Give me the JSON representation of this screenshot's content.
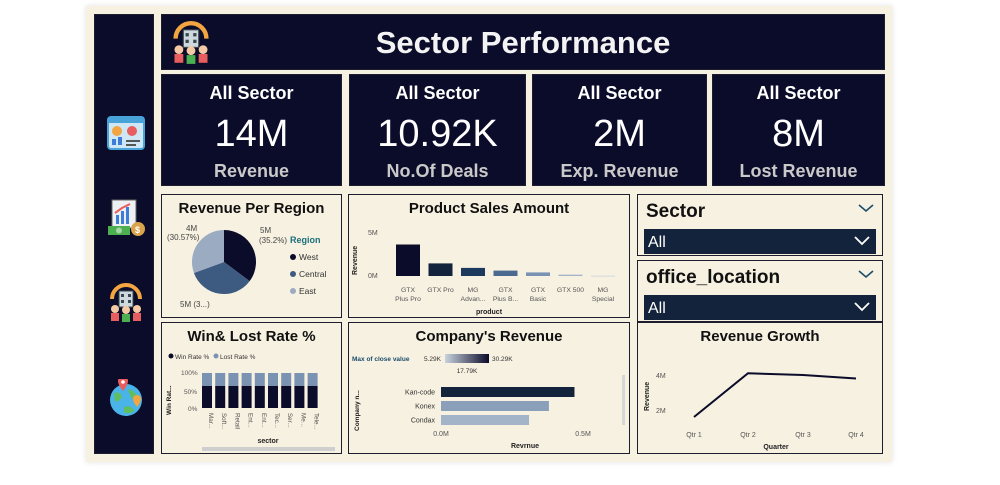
{
  "header": {
    "title": "Sector Performance",
    "logo_icon": "office-team-icon"
  },
  "sidebar": {
    "items": [
      {
        "icon": "dashboard-icon"
      },
      {
        "icon": "finance-growth-icon"
      },
      {
        "icon": "office-team-icon"
      },
      {
        "icon": "globe-location-icon"
      }
    ]
  },
  "kpis": [
    {
      "top": "All Sector",
      "value": "14M",
      "label": "Revenue"
    },
    {
      "top": "All Sector",
      "value": "10.92K",
      "label": "No.Of Deals"
    },
    {
      "top": "All Sector",
      "value": "2M",
      "label": "Exp. Revenue"
    },
    {
      "top": "All Sector",
      "value": "8M",
      "label": "Lost Revenue"
    }
  ],
  "pie": {
    "title": "Revenue Per Region",
    "legend_title": "Region",
    "slices": [
      {
        "name": "West",
        "value": 5,
        "percent": 35.2,
        "color": "#0b0b2a"
      },
      {
        "name": "Central",
        "value": 5,
        "percent": 34.23,
        "color": "#3d5a80"
      },
      {
        "name": "East",
        "value": 4,
        "percent": 30.57,
        "color": "#9aabc2"
      }
    ],
    "labels": {
      "west": "5M\n(35.2%)",
      "east": "4M\n(30.57%)",
      "central": "5M (3...)"
    },
    "label_west_1": "5M",
    "label_west_2": "(35.2%)",
    "label_east_1": "4M",
    "label_east_2": "(30.57%)",
    "label_central": "5M (3...)"
  },
  "product_sales": {
    "title": "Product Sales Amount",
    "ylabel": "Revenue",
    "xlabel": "product",
    "yticks": [
      "5M",
      "0M"
    ],
    "categories": [
      [
        "GTX",
        "Plus Pro"
      ],
      [
        "GTX Pro"
      ],
      [
        "MG",
        "Advan..."
      ],
      [
        "GTX",
        "Plus B..."
      ],
      [
        "GTX",
        "Basic"
      ],
      [
        "GTX 500"
      ],
      [
        "MG",
        "Special"
      ]
    ],
    "values": [
      3.5,
      1.4,
      0.9,
      0.6,
      0.4,
      0.15,
      0.03
    ],
    "colors": [
      "#0b0b2a",
      "#13233b",
      "#1c3a5e",
      "#4a6a90",
      "#7a93b2",
      "#a4b4c8",
      "#c9d3de"
    ]
  },
  "slicers": [
    {
      "title": "Sector",
      "value": "All"
    },
    {
      "title": "office_location",
      "value": "All"
    }
  ],
  "winlost": {
    "title": "Win& Lost Rate %",
    "legend": [
      "Win Rate %",
      "Lost Rate %"
    ],
    "ylabel": "Win Rat...",
    "xlabel": "sector",
    "yticks": [
      "100%",
      "50%",
      "0%"
    ],
    "categories": [
      "Mar...",
      "Soft...",
      "Retail",
      "Ent...",
      "Ent...",
      "Tec...",
      "Ser...",
      "Me...",
      "Tele..."
    ],
    "win": [
      63,
      63,
      63,
      63,
      63,
      63,
      63,
      63,
      63
    ],
    "lost": [
      37,
      37,
      37,
      37,
      37,
      37,
      37,
      37,
      37
    ]
  },
  "company_revenue": {
    "title": "Company's Revenue",
    "legend_title": "Max of close value",
    "legend_min": "5.29K",
    "legend_max": "30.29K",
    "legend_mid": "17.79K",
    "ylabel": "Company n...",
    "xlabel": "Revrnue",
    "xticks": [
      "0.0M",
      "0.5M"
    ],
    "categories": [
      "Kan-code",
      "Konex",
      "Condax"
    ],
    "values": [
      0.47,
      0.38,
      0.31
    ],
    "colors": [
      "#13233b",
      "#8aa0ba",
      "#a4b4c8"
    ]
  },
  "growth": {
    "title": "Revenue Growth",
    "ylabel": "Revenue",
    "xlabel": "Quarter",
    "yticks": [
      "4M",
      "2M"
    ],
    "categories": [
      "Qtr 1",
      "Qtr 2",
      "Qtr 3",
      "Qtr 4"
    ],
    "values": [
      1.6,
      4.1,
      4.0,
      3.8
    ]
  },
  "chart_data": [
    {
      "type": "pie",
      "title": "Revenue Per Region",
      "legend": "Region",
      "categories": [
        "West",
        "Central",
        "East"
      ],
      "values": [
        5,
        5,
        4
      ],
      "percent": [
        35.2,
        34.23,
        30.57
      ]
    },
    {
      "type": "bar",
      "title": "Product Sales Amount",
      "xlabel": "product",
      "ylabel": "Revenue",
      "categories": [
        "GTX Plus Pro",
        "GTX Pro",
        "MG Advan...",
        "GTX Plus B...",
        "GTX Basic",
        "GTX 500",
        "MG Special"
      ],
      "values": [
        3.5,
        1.4,
        0.9,
        0.6,
        0.4,
        0.15,
        0.03
      ]
    },
    {
      "type": "bar",
      "title": "Win& Lost Rate %",
      "xlabel": "sector",
      "ylabel": "Win Rat...",
      "categories": [
        "Mar...",
        "Soft...",
        "Retail",
        "Ent...",
        "Ent...",
        "Tec...",
        "Ser...",
        "Me...",
        "Tele..."
      ],
      "series": [
        {
          "name": "Win Rate %",
          "values": [
            63,
            63,
            63,
            63,
            63,
            63,
            63,
            63,
            63
          ]
        },
        {
          "name": "Lost Rate %",
          "values": [
            37,
            37,
            37,
            37,
            37,
            37,
            37,
            37,
            37
          ]
        }
      ]
    },
    {
      "type": "bar",
      "title": "Company's Revenue",
      "xlabel": "Revrnue",
      "ylabel": "Company n...",
      "categories": [
        "Kan-code",
        "Konex",
        "Condax"
      ],
      "values": [
        0.47,
        0.38,
        0.31
      ]
    },
    {
      "type": "line",
      "title": "Revenue Growth",
      "xlabel": "Quarter",
      "ylabel": "Revenue",
      "categories": [
        "Qtr 1",
        "Qtr 2",
        "Qtr 3",
        "Qtr 4"
      ],
      "values": [
        1.6,
        4.1,
        4.0,
        3.8
      ]
    }
  ]
}
